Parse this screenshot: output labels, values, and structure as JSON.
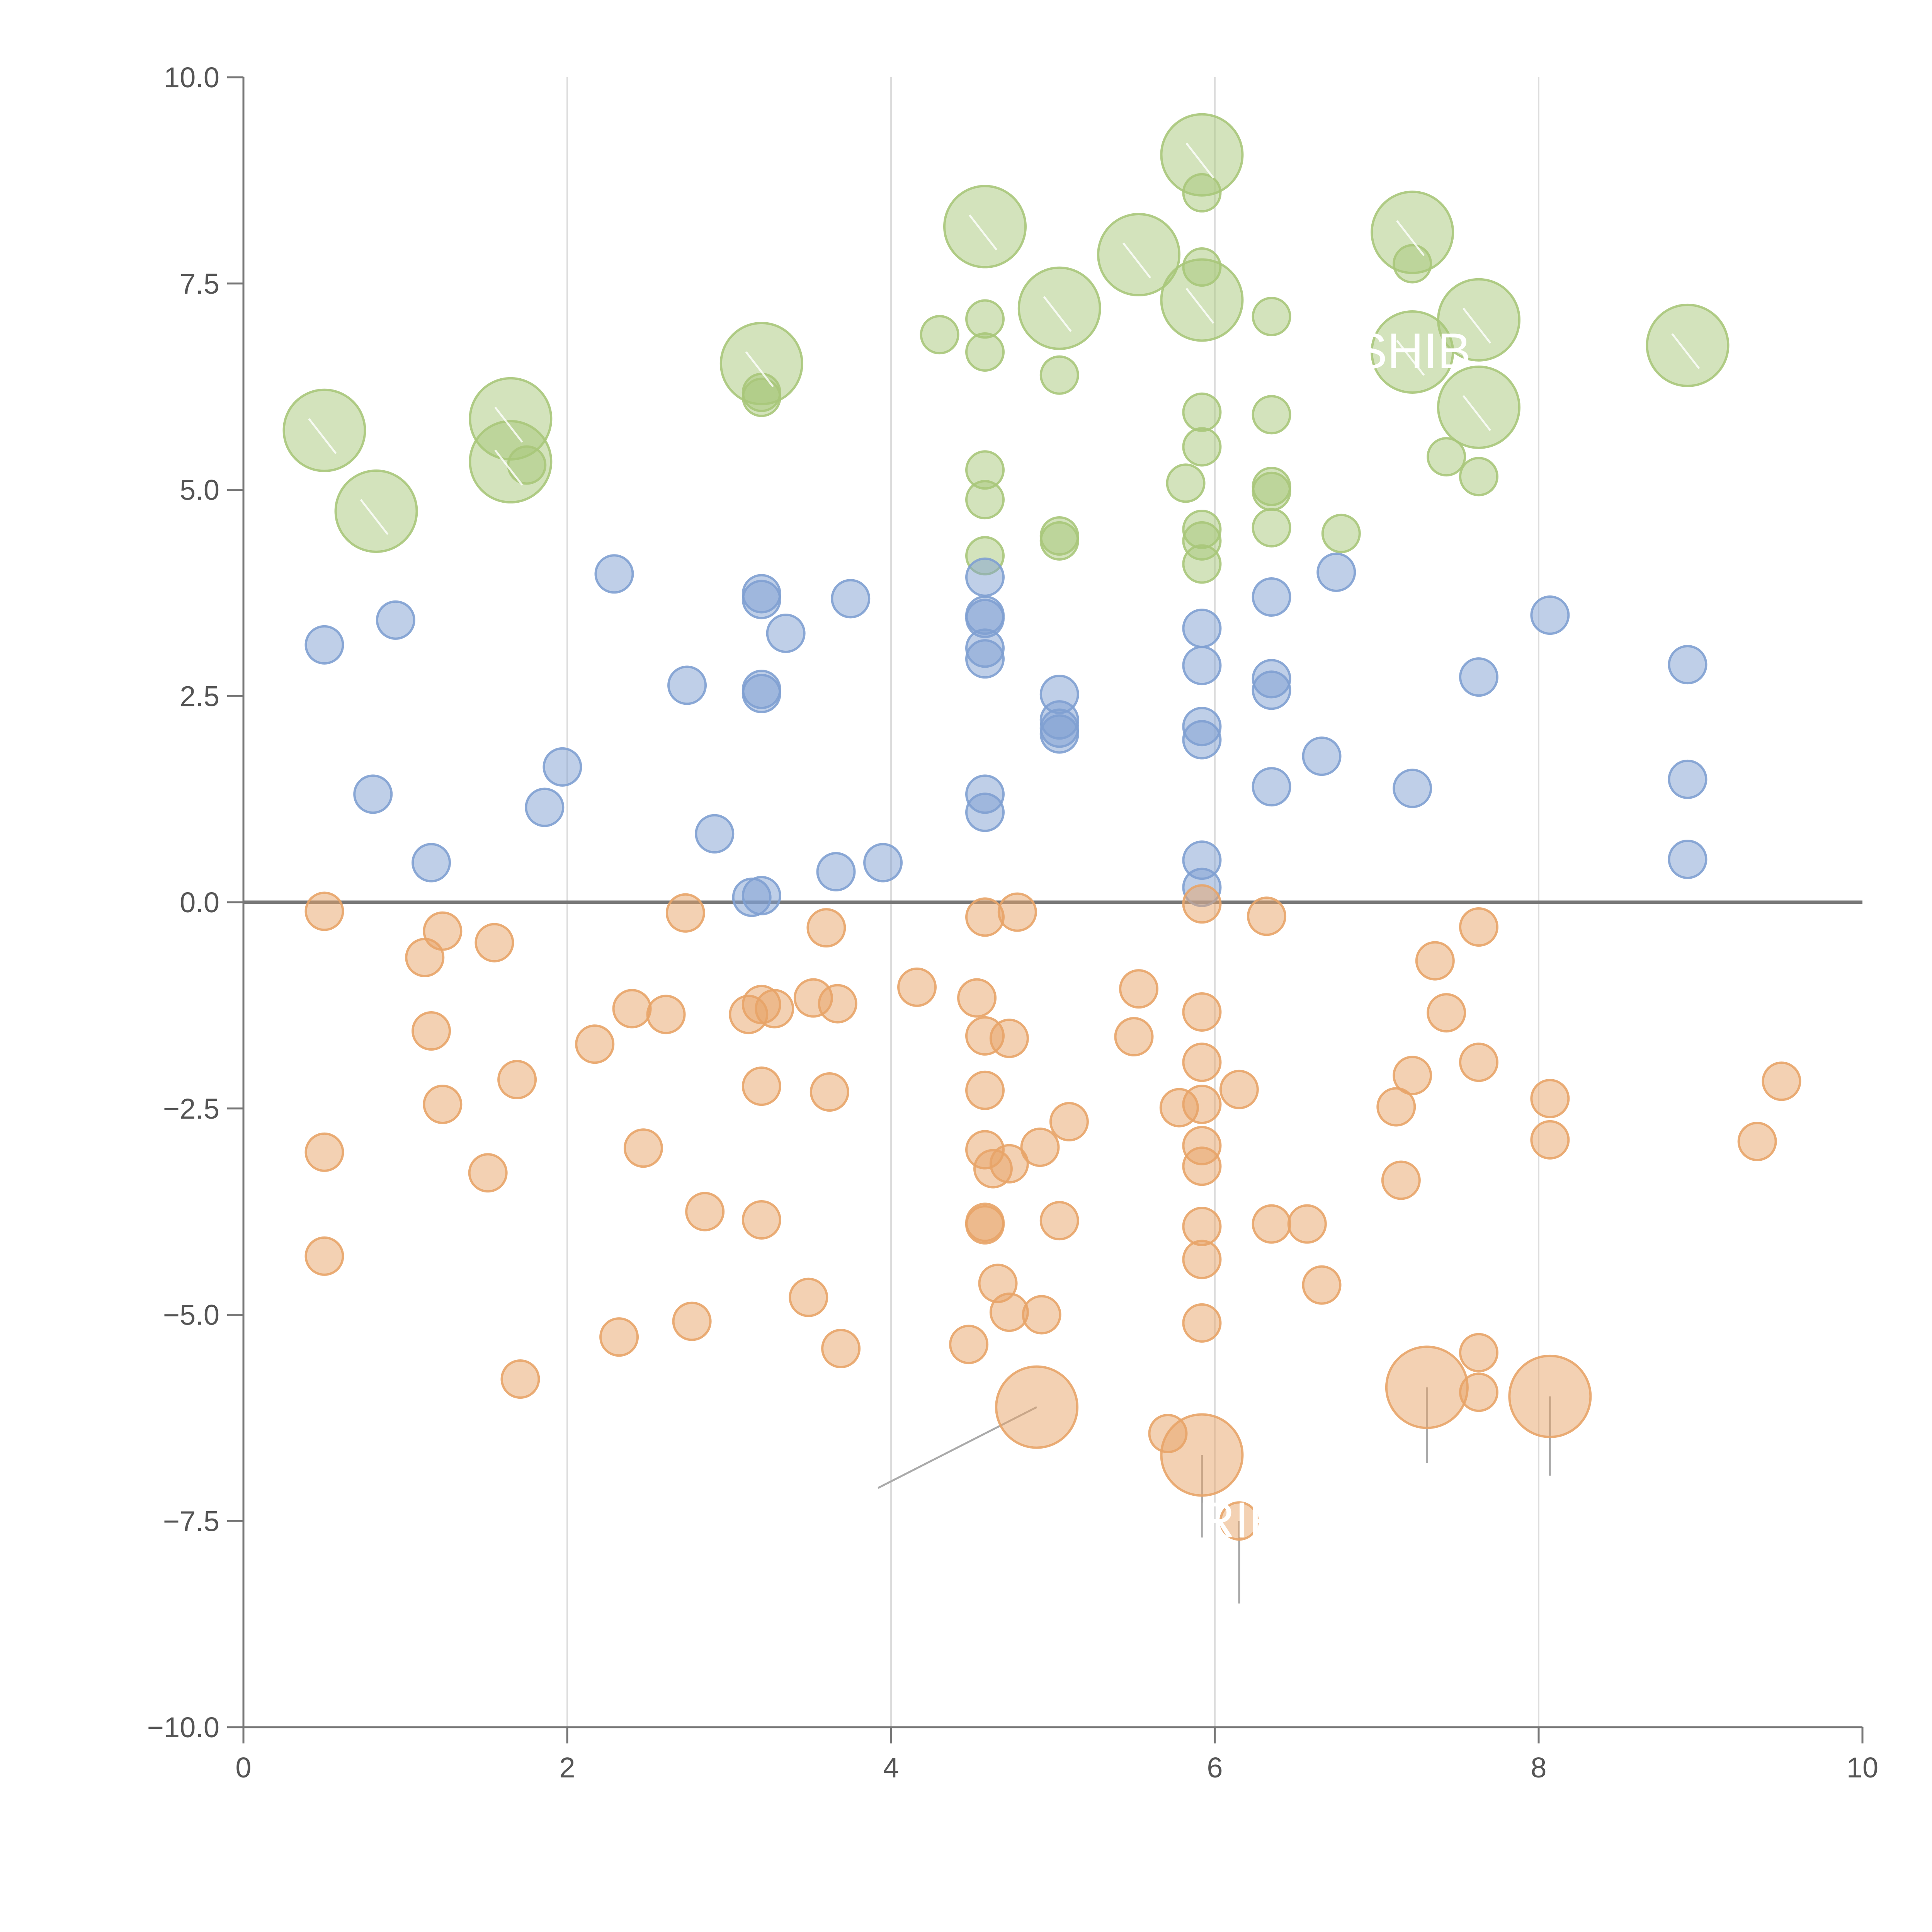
{
  "chart_data": {
    "type": "scatter",
    "title": "",
    "xlabel": "",
    "ylabel": "",
    "xlim": [
      0,
      10
    ],
    "ylim": [
      -10,
      10
    ],
    "x_ticks": [
      0,
      2,
      4,
      6,
      8,
      10
    ],
    "y_ticks": [
      -10,
      -7.5,
      -5,
      -2.5,
      0,
      2.5,
      5,
      7.5,
      10
    ],
    "x_tick_labels": [
      "0",
      "2",
      "4",
      "6",
      "8",
      "10"
    ],
    "y_tick_labels": [
      "−10.0",
      "−7.5",
      "−5.0",
      "−2.5",
      "0.0",
      "2.5",
      "5.0",
      "7.5",
      "10.0"
    ],
    "vertical_gridlines": [
      2,
      4,
      6,
      8
    ],
    "reference_line_y": 0,
    "colors": {
      "green": "#a8c77a",
      "blue": "#7fa0d2",
      "orange": "#e8a468",
      "axis": "#777777",
      "grid": "#dddddd",
      "zero_line": "#777777",
      "leader": "#aaaaaa"
    },
    "series": [
      {
        "name": "green",
        "color": "#a8c77a",
        "points": [
          [
            0.5,
            5.72,
            2
          ],
          [
            0.82,
            4.74,
            2
          ],
          [
            1.65,
            5.86,
            2
          ],
          [
            1.65,
            5.34,
            2
          ],
          [
            1.75,
            5.3,
            1
          ],
          [
            3.2,
            6.53,
            2
          ],
          [
            3.2,
            6.18,
            1
          ],
          [
            3.2,
            6.12,
            1
          ],
          [
            4.3,
            6.88,
            1
          ],
          [
            4.58,
            8.19,
            2
          ],
          [
            4.58,
            7.07,
            1
          ],
          [
            4.58,
            6.67,
            1
          ],
          [
            4.58,
            5.24,
            1
          ],
          [
            4.58,
            4.88,
            1
          ],
          [
            4.58,
            4.2,
            1
          ],
          [
            5.04,
            7.2,
            2
          ],
          [
            5.04,
            6.39,
            1
          ],
          [
            5.04,
            4.38,
            1
          ],
          [
            5.04,
            4.44,
            1
          ],
          [
            5.53,
            7.85,
            2
          ],
          [
            5.82,
            5.08,
            1
          ],
          [
            5.92,
            9.06,
            2
          ],
          [
            5.92,
            8.6,
            1
          ],
          [
            5.92,
            7.7,
            1
          ],
          [
            5.92,
            7.3,
            2
          ],
          [
            5.92,
            5.94,
            1
          ],
          [
            5.92,
            5.52,
            1
          ],
          [
            5.92,
            4.52,
            1
          ],
          [
            5.92,
            4.38,
            1
          ],
          [
            5.92,
            4.1,
            1
          ],
          [
            6.35,
            7.1,
            1
          ],
          [
            6.35,
            5.91,
            1
          ],
          [
            6.35,
            5.04,
            1
          ],
          [
            6.35,
            4.98,
            1
          ],
          [
            6.35,
            4.54,
            1
          ],
          [
            6.78,
            4.47,
            1
          ],
          [
            7.22,
            8.12,
            2
          ],
          [
            7.22,
            7.74,
            1
          ],
          [
            7.22,
            6.67,
            2
          ],
          [
            7.43,
            5.4,
            1
          ],
          [
            7.63,
            7.06,
            2
          ],
          [
            7.63,
            6.0,
            2
          ],
          [
            7.63,
            5.16,
            1
          ],
          [
            8.92,
            6.75,
            2
          ]
        ]
      },
      {
        "name": "blue",
        "color": "#7fa0d2",
        "points": [
          [
            0.5,
            3.12,
            1
          ],
          [
            0.8,
            1.31,
            1
          ],
          [
            0.94,
            3.42,
            1
          ],
          [
            1.16,
            0.48,
            1
          ],
          [
            1.86,
            1.15,
            1
          ],
          [
            1.97,
            1.64,
            1
          ],
          [
            2.29,
            3.98,
            1
          ],
          [
            2.74,
            2.63,
            1
          ],
          [
            2.91,
            0.83,
            1
          ],
          [
            3.14,
            0.06,
            1
          ],
          [
            3.2,
            0.08,
            1
          ],
          [
            3.2,
            2.53,
            1
          ],
          [
            3.2,
            2.58,
            1
          ],
          [
            3.2,
            3.67,
            1
          ],
          [
            3.2,
            3.74,
            1
          ],
          [
            3.35,
            3.26,
            1
          ],
          [
            3.66,
            0.37,
            1
          ],
          [
            3.75,
            3.68,
            1
          ],
          [
            3.95,
            0.48,
            1
          ],
          [
            4.58,
            1.09,
            1
          ],
          [
            4.58,
            1.31,
            1
          ],
          [
            4.58,
            2.95,
            1
          ],
          [
            4.58,
            3.08,
            1
          ],
          [
            4.58,
            3.44,
            1
          ],
          [
            4.58,
            3.48,
            1
          ],
          [
            4.58,
            3.94,
            1
          ],
          [
            5.04,
            2.04,
            1
          ],
          [
            5.04,
            2.11,
            1
          ],
          [
            5.04,
            2.21,
            1
          ],
          [
            5.04,
            2.52,
            1
          ],
          [
            5.92,
            0.18,
            1
          ],
          [
            5.92,
            0.51,
            1
          ],
          [
            5.92,
            1.97,
            1
          ],
          [
            5.92,
            2.13,
            1
          ],
          [
            5.92,
            2.87,
            1
          ],
          [
            5.92,
            3.32,
            1
          ],
          [
            6.35,
            1.4,
            1
          ],
          [
            6.35,
            2.57,
            1
          ],
          [
            6.35,
            2.71,
            1
          ],
          [
            6.35,
            3.7,
            1
          ],
          [
            6.66,
            1.77,
            1
          ],
          [
            6.75,
            4.0,
            1
          ],
          [
            7.22,
            1.38,
            1
          ],
          [
            7.63,
            2.73,
            1
          ],
          [
            8.07,
            3.48,
            1
          ],
          [
            8.92,
            0.52,
            1
          ],
          [
            8.92,
            1.49,
            1
          ],
          [
            8.92,
            2.88,
            1
          ]
        ]
      },
      {
        "name": "orange",
        "color": "#e8a468",
        "points": [
          [
            0.5,
            -0.11,
            1
          ],
          [
            0.5,
            -3.03,
            1
          ],
          [
            0.5,
            -4.29,
            1
          ],
          [
            1.12,
            -0.67,
            1
          ],
          [
            1.16,
            -1.56,
            1
          ],
          [
            1.23,
            -0.35,
            1
          ],
          [
            1.23,
            -2.45,
            1
          ],
          [
            1.51,
            -3.28,
            1
          ],
          [
            1.55,
            -0.49,
            1
          ],
          [
            1.69,
            -2.15,
            1
          ],
          [
            1.71,
            -5.78,
            1
          ],
          [
            2.17,
            -1.72,
            1
          ],
          [
            2.32,
            -5.27,
            1
          ],
          [
            2.4,
            -1.29,
            1
          ],
          [
            2.47,
            -2.98,
            1
          ],
          [
            2.61,
            -1.36,
            1
          ],
          [
            2.73,
            -0.13,
            1
          ],
          [
            2.77,
            -5.08,
            1
          ],
          [
            2.85,
            -3.75,
            1
          ],
          [
            3.12,
            -1.36,
            1
          ],
          [
            3.2,
            -1.24,
            1
          ],
          [
            3.2,
            -2.23,
            1
          ],
          [
            3.2,
            -3.85,
            1
          ],
          [
            3.28,
            -1.29,
            1
          ],
          [
            3.49,
            -4.79,
            1
          ],
          [
            3.52,
            -1.16,
            1
          ],
          [
            3.6,
            -0.31,
            1
          ],
          [
            3.62,
            -2.3,
            1
          ],
          [
            3.67,
            -1.23,
            1
          ],
          [
            3.69,
            -5.41,
            1
          ],
          [
            4.16,
            -1.03,
            1
          ],
          [
            4.48,
            -5.36,
            1
          ],
          [
            4.53,
            -1.16,
            1
          ],
          [
            4.58,
            -0.18,
            1
          ],
          [
            4.58,
            -1.62,
            1
          ],
          [
            4.58,
            -2.28,
            1
          ],
          [
            4.58,
            -3.0,
            1
          ],
          [
            4.58,
            -3.88,
            1
          ],
          [
            4.58,
            -3.91,
            1
          ],
          [
            4.63,
            -3.23,
            1
          ],
          [
            4.66,
            -4.62,
            1
          ],
          [
            4.73,
            -1.65,
            1
          ],
          [
            4.73,
            -3.17,
            1
          ],
          [
            4.73,
            -4.97,
            1
          ],
          [
            4.78,
            -0.12,
            1
          ],
          [
            4.9,
            -6.12,
            2
          ],
          [
            4.92,
            -2.97,
            1
          ],
          [
            4.93,
            -5.0,
            1
          ],
          [
            5.04,
            -3.86,
            1
          ],
          [
            5.1,
            -2.66,
            1
          ],
          [
            5.5,
            -1.63,
            1
          ],
          [
            5.53,
            -1.05,
            1
          ],
          [
            5.71,
            -6.44,
            1
          ],
          [
            5.78,
            -2.49,
            1
          ],
          [
            5.92,
            -0.02,
            1
          ],
          [
            5.92,
            -1.33,
            1
          ],
          [
            5.92,
            -1.94,
            1
          ],
          [
            5.92,
            -2.45,
            1
          ],
          [
            5.92,
            -2.95,
            1
          ],
          [
            5.92,
            -3.2,
            1
          ],
          [
            5.92,
            -3.93,
            1
          ],
          [
            5.92,
            -4.33,
            1
          ],
          [
            5.92,
            -5.1,
            1
          ],
          [
            5.92,
            -6.7,
            2
          ],
          [
            6.15,
            -2.27,
            1
          ],
          [
            6.15,
            -7.5,
            1
          ],
          [
            6.32,
            -0.17,
            1
          ],
          [
            6.35,
            -3.9,
            1
          ],
          [
            6.57,
            -3.9,
            1
          ],
          [
            6.66,
            -4.64,
            1
          ],
          [
            7.12,
            -2.48,
            1
          ],
          [
            7.15,
            -3.37,
            1
          ],
          [
            7.22,
            -2.1,
            1
          ],
          [
            7.31,
            -5.88,
            2
          ],
          [
            7.36,
            -0.71,
            1
          ],
          [
            7.43,
            -1.34,
            1
          ],
          [
            7.63,
            -0.3,
            1
          ],
          [
            7.63,
            -1.94,
            1
          ],
          [
            7.63,
            -5.46,
            1
          ],
          [
            7.63,
            -5.94,
            1
          ],
          [
            8.07,
            -2.38,
            1
          ],
          [
            8.07,
            -2.88,
            1
          ],
          [
            8.07,
            -5.99,
            2
          ],
          [
            9.35,
            -2.9,
            1
          ],
          [
            9.5,
            -2.17,
            1
          ]
        ]
      }
    ],
    "annotations": [
      {
        "text": "SHIB",
        "x": 7.22,
        "y": 6.67,
        "series": "green"
      },
      {
        "text": "RIF",
        "x": 6.15,
        "y": -7.5,
        "series": "orange"
      }
    ]
  }
}
